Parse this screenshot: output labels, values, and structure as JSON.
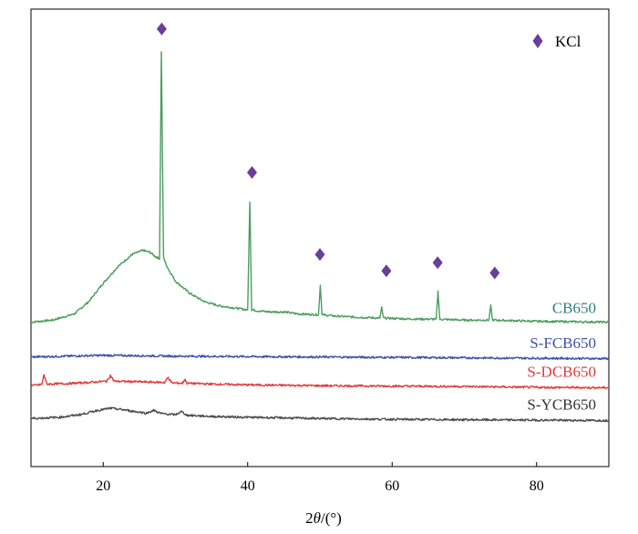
{
  "chart_data": {
    "type": "line",
    "xlabel_prefix": "2",
    "xlabel_symbol": "θ",
    "xlabel_suffix": "/(°)",
    "xlim": [
      10,
      90
    ],
    "xticks": [
      20,
      40,
      60,
      80
    ],
    "ylim": [
      0,
      100
    ],
    "y_axis_ticks_shown": false,
    "grid": false,
    "legend": {
      "position": "top-right",
      "marker": "diamond",
      "label": "KCl",
      "color": "#6a3d9a"
    },
    "series": [
      {
        "name": "CB650",
        "color": "#4a9e5c",
        "label_color": "#2f7f7f",
        "baseline": 29,
        "x": [
          10,
          13,
          16,
          18,
          20,
          22,
          24,
          25.5,
          26.5,
          27.2,
          27.8,
          28.05,
          28.35,
          28.6,
          29,
          30,
          32,
          34,
          36,
          38,
          40,
          40.3,
          40.55,
          40.8,
          41.2,
          43,
          45,
          47,
          49.8,
          50.05,
          50.3,
          52,
          55,
          58.3,
          58.55,
          58.8,
          62,
          66.1,
          66.35,
          66.6,
          70,
          73.4,
          73.65,
          73.9,
          80,
          85,
          90
        ],
        "y": [
          29,
          29.5,
          31,
          34,
          38.5,
          42.5,
          45.5,
          46.5,
          46,
          45,
          44.5,
          95,
          45,
          43.5,
          42,
          39,
          36,
          34,
          33,
          32.5,
          32,
          58.5,
          32,
          32,
          31.8,
          31.5,
          31.5,
          31,
          30.8,
          38,
          30.8,
          30.5,
          30.2,
          30,
          32.5,
          30,
          29.8,
          29.7,
          36.5,
          29.7,
          29.5,
          29.5,
          33,
          29.5,
          29.2,
          29.1,
          29
        ]
      },
      {
        "name": "S-FCB650",
        "color": "#3f51a6",
        "label_color": "#3f51a6",
        "baseline": 20.5,
        "x": [
          10,
          20,
          30,
          40,
          50,
          60,
          70,
          80,
          90
        ],
        "y": [
          20.5,
          20.9,
          20.7,
          20.6,
          20.5,
          20.4,
          20.3,
          20.2,
          20.1
        ]
      },
      {
        "name": "S-DCB650",
        "color": "#e03a3a",
        "label_color": "#e03a3a",
        "baseline": 13.5,
        "x": [
          10,
          11.5,
          11.8,
          12.2,
          15,
          18,
          20.5,
          21,
          21.5,
          24,
          26,
          28.5,
          29,
          29.5,
          31,
          31.3,
          31.6,
          35,
          40,
          50,
          60,
          70,
          80,
          90
        ],
        "y": [
          13.5,
          13.8,
          16.2,
          13.9,
          14,
          14.3,
          14.6,
          16,
          14.6,
          14.5,
          14.4,
          14.3,
          15.5,
          14.2,
          14.1,
          15.1,
          14.1,
          13.9,
          13.7,
          13.5,
          13.4,
          13.3,
          13.1,
          13
        ]
      },
      {
        "name": "S-YCB650",
        "color": "#4a4a4a",
        "label_color": "#333333",
        "baseline": 5.5,
        "x": [
          10,
          14,
          17,
          19,
          21,
          22.5,
          24,
          26,
          27,
          28,
          30,
          30.8,
          31.6,
          35,
          40,
          50,
          60,
          70,
          80,
          90
        ],
        "y": [
          5.5,
          5.8,
          6.5,
          7.4,
          8,
          7.7,
          7.3,
          6.8,
          7.5,
          6.7,
          6.4,
          7.2,
          6.3,
          6,
          5.8,
          5.5,
          5.3,
          5.2,
          5.1,
          5
        ]
      }
    ],
    "annotations": {
      "marker": "diamond",
      "color": "#6a3d9a",
      "points": [
        {
          "x": 28.1,
          "y": 100.5
        },
        {
          "x": 40.6,
          "y": 65.5
        },
        {
          "x": 50.0,
          "y": 45.5
        },
        {
          "x": 59.2,
          "y": 41.5
        },
        {
          "x": 66.3,
          "y": 43.5
        },
        {
          "x": 74.2,
          "y": 41
        }
      ]
    }
  }
}
